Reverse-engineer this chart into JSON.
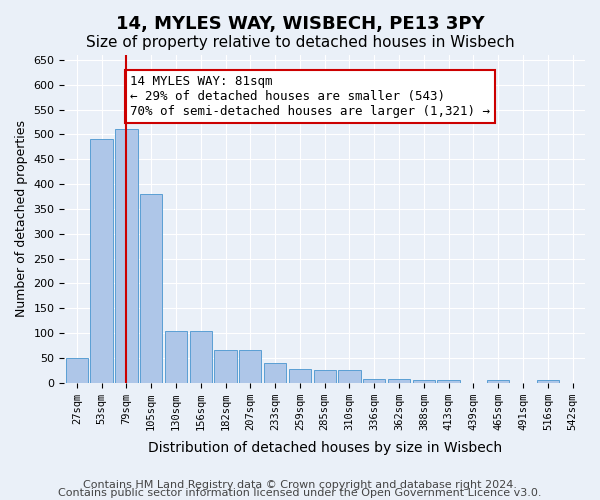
{
  "title1": "14, MYLES WAY, WISBECH, PE13 3PY",
  "title2": "Size of property relative to detached houses in Wisbech",
  "xlabel": "Distribution of detached houses by size in Wisbech",
  "ylabel": "Number of detached properties",
  "categories": [
    "27sqm",
    "53sqm",
    "79sqm",
    "105sqm",
    "130sqm",
    "156sqm",
    "182sqm",
    "207sqm",
    "233sqm",
    "259sqm",
    "285sqm",
    "310sqm",
    "336sqm",
    "362sqm",
    "388sqm",
    "413sqm",
    "439sqm",
    "465sqm",
    "491sqm",
    "516sqm",
    "542sqm"
  ],
  "values": [
    50,
    490,
    510,
    380,
    105,
    105,
    65,
    65,
    40,
    28,
    25,
    25,
    8,
    8,
    5,
    5,
    0,
    5,
    0,
    5,
    0
  ],
  "bar_color": "#aec6e8",
  "bar_edge_color": "#5a9fd4",
  "vline_x_index": 2,
  "vline_color": "#cc0000",
  "annotation_text": "14 MYLES WAY: 81sqm\n← 29% of detached houses are smaller (543)\n70% of semi-detached houses are larger (1,321) →",
  "annotation_box_color": "#ffffff",
  "annotation_box_edge": "#cc0000",
  "ylim": [
    0,
    660
  ],
  "yticks": [
    0,
    50,
    100,
    150,
    200,
    250,
    300,
    350,
    400,
    450,
    500,
    550,
    600,
    650
  ],
  "footer1": "Contains HM Land Registry data © Crown copyright and database right 2024.",
  "footer2": "Contains public sector information licensed under the Open Government Licence v3.0.",
  "background_color": "#eaf0f8",
  "plot_bg_color": "#eaf0f8",
  "title1_fontsize": 13,
  "title2_fontsize": 11,
  "annotation_fontsize": 9,
  "footer_fontsize": 8,
  "ylabel_fontsize": 9,
  "xlabel_fontsize": 10
}
